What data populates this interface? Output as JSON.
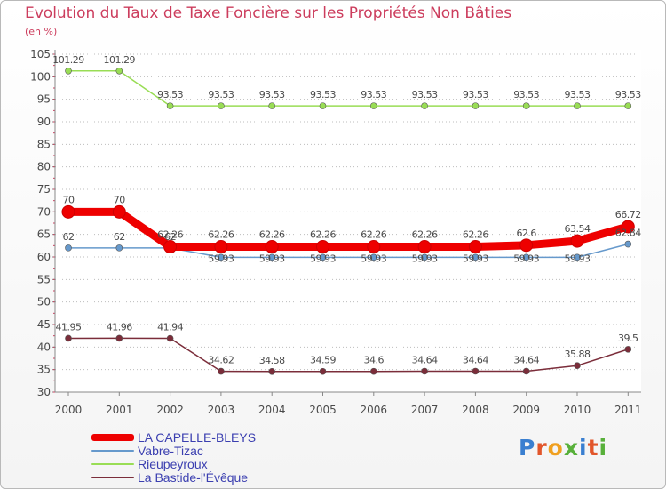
{
  "header": {
    "title": "Evolution du Taux de Taxe Foncière sur les Propriétés Non Bâties",
    "unit": "(en %)"
  },
  "logo": {
    "text": "Proxiti"
  },
  "colors": {
    "title": "#cc3d5d",
    "legend_text": "#3b3fb0",
    "grid": "#bdbdbd",
    "axis": "#888888",
    "labels": "#4a4a4a"
  },
  "chart_data": {
    "type": "line",
    "title": "Evolution du Taux de Taxe Foncière sur les Propriétés Non Bâties",
    "ylabel": "(en %)",
    "xlabel": "",
    "x": [
      "2000",
      "2001",
      "2002",
      "2003",
      "2004",
      "2005",
      "2006",
      "2007",
      "2008",
      "2009",
      "2010",
      "2011"
    ],
    "ylim": [
      30,
      105
    ],
    "yticks": [
      30,
      35,
      40,
      45,
      50,
      55,
      60,
      65,
      70,
      75,
      80,
      85,
      90,
      95,
      100,
      105
    ],
    "grid": "horizontal",
    "legend_position": "bottom-left",
    "series": [
      {
        "name": "LA CAPELLE-BLEYS",
        "color": "#ee0000",
        "values": [
          70,
          70,
          62.26,
          62.26,
          62.26,
          62.26,
          62.26,
          62.26,
          62.26,
          62.6,
          63.54,
          66.72
        ],
        "labels": [
          "70",
          "70",
          "62.26",
          "62.26",
          "62.26",
          "62.26",
          "62.26",
          "62.26",
          "62.26",
          "62.6",
          "63.54",
          "66.72"
        ]
      },
      {
        "name": "Vabre-Tizac",
        "color": "#6699cc",
        "values": [
          62,
          62,
          62,
          59.93,
          59.93,
          59.93,
          59.93,
          59.93,
          59.93,
          59.93,
          59.93,
          62.84
        ],
        "labels": [
          "62",
          "62",
          "62",
          "59.93",
          "59.93",
          "59.93",
          "59.93",
          "59.93",
          "59.93",
          "59.93",
          "59.93",
          "62.84"
        ]
      },
      {
        "name": "Rieupeyroux",
        "color": "#99dd55",
        "values": [
          101.29,
          101.29,
          93.53,
          93.53,
          93.53,
          93.53,
          93.53,
          93.53,
          93.53,
          93.53,
          93.53,
          93.53
        ],
        "labels": [
          "101.29",
          "101.29",
          "93.53",
          "93.53",
          "93.53",
          "93.53",
          "93.53",
          "93.53",
          "93.53",
          "93.53",
          "93.53",
          "93.53"
        ]
      },
      {
        "name": "La Bastide-l'Évêque",
        "color": "#7b2d3a",
        "values": [
          41.95,
          41.96,
          41.94,
          34.62,
          34.58,
          34.59,
          34.6,
          34.64,
          34.64,
          34.64,
          35.88,
          39.5
        ],
        "labels": [
          "41.95",
          "41.96",
          "41.94",
          "34.62",
          "34.58",
          "34.59",
          "34.6",
          "34.64",
          "34.64",
          "34.64",
          "35.88",
          "39.5"
        ]
      }
    ]
  }
}
